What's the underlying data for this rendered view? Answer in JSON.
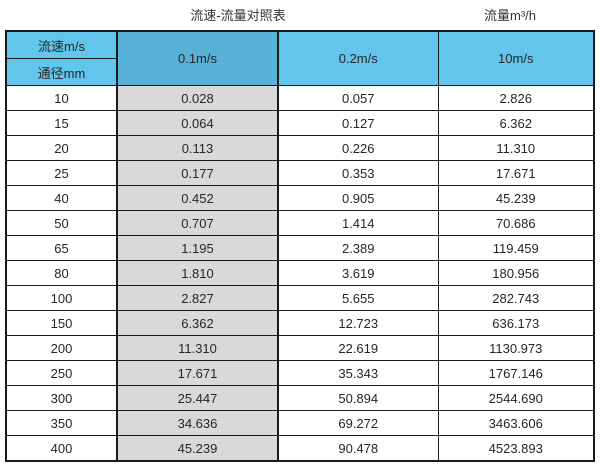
{
  "page": {
    "title_left": "流速-流量对照表",
    "title_right": "流量m³/h"
  },
  "table": {
    "corner": {
      "top": "流速m/s",
      "bottom": "通径mm"
    },
    "velocity_columns": [
      "0.1m/s",
      "0.2m/s",
      "10m/s"
    ],
    "rows": [
      {
        "dn": "10",
        "values": [
          "0.028",
          "0.057",
          "2.826"
        ]
      },
      {
        "dn": "15",
        "values": [
          "0.064",
          "0.127",
          "6.362"
        ]
      },
      {
        "dn": "20",
        "values": [
          "0.113",
          "0.226",
          "11.310"
        ]
      },
      {
        "dn": "25",
        "values": [
          "0.177",
          "0.353",
          "17.671"
        ]
      },
      {
        "dn": "40",
        "values": [
          "0.452",
          "0.905",
          "45.239"
        ]
      },
      {
        "dn": "50",
        "values": [
          "0.707",
          "1.414",
          "70.686"
        ]
      },
      {
        "dn": "65",
        "values": [
          "1.195",
          "2.389",
          "119.459"
        ]
      },
      {
        "dn": "80",
        "values": [
          "1.810",
          "3.619",
          "180.956"
        ]
      },
      {
        "dn": "100",
        "values": [
          "2.827",
          "5.655",
          "282.743"
        ]
      },
      {
        "dn": "150",
        "values": [
          "6.362",
          "12.723",
          "636.173"
        ]
      },
      {
        "dn": "200",
        "values": [
          "11.310",
          "22.619",
          "1130.973"
        ]
      },
      {
        "dn": "250",
        "values": [
          "17.671",
          "35.343",
          "1767.146"
        ]
      },
      {
        "dn": "300",
        "values": [
          "25.447",
          "50.894",
          "2544.690"
        ]
      },
      {
        "dn": "350",
        "values": [
          "34.636",
          "69.272",
          "3463.606"
        ]
      },
      {
        "dn": "400",
        "values": [
          "45.239",
          "90.478",
          "4523.893"
        ]
      }
    ]
  },
  "colors": {
    "header_blue": "#62c6ec",
    "header_blue_dark": "#58b1d6",
    "shaded_column_gray": "#d9d9d9",
    "border": "#1a1a1a"
  },
  "chart_data": {
    "type": "table",
    "title": "流速-流量对照表",
    "unit_label": "流量m³/h",
    "columns": [
      "通径mm",
      "0.1m/s",
      "0.2m/s",
      "10m/s"
    ],
    "rows": [
      [
        10,
        0.028,
        0.057,
        2.826
      ],
      [
        15,
        0.064,
        0.127,
        6.362
      ],
      [
        20,
        0.113,
        0.226,
        11.31
      ],
      [
        25,
        0.177,
        0.353,
        17.671
      ],
      [
        40,
        0.452,
        0.905,
        45.239
      ],
      [
        50,
        0.707,
        1.414,
        70.686
      ],
      [
        65,
        1.195,
        2.389,
        119.459
      ],
      [
        80,
        1.81,
        3.619,
        180.956
      ],
      [
        100,
        2.827,
        5.655,
        282.743
      ],
      [
        150,
        6.362,
        12.723,
        636.173
      ],
      [
        200,
        11.31,
        22.619,
        1130.973
      ],
      [
        250,
        17.671,
        35.343,
        1767.146
      ],
      [
        300,
        25.447,
        50.894,
        2544.69
      ],
      [
        350,
        34.636,
        69.272,
        3463.606
      ],
      [
        400,
        45.239,
        90.478,
        4523.893
      ]
    ]
  }
}
